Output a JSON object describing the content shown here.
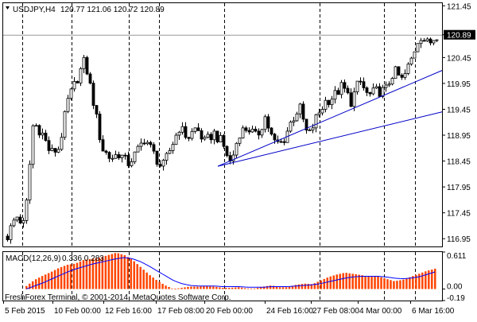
{
  "window": {
    "symbol_label": "USDJPY,H4",
    "ohlc_label": "120.77 121.06 120.72 120.89"
  },
  "copyright": "FreshForex Terminal, © 2001-2014, MetaQuotes Software Corp.",
  "colors": {
    "background": "#ffffff",
    "frame": "#000000",
    "candle": "#000000",
    "grid": "#000000",
    "trendline": "#0000c8",
    "macd_histogram": "#ff4500",
    "macd_signal": "#0000ff",
    "price_label_bg": "#000000",
    "price_label_text": "#ffffff"
  },
  "chart_data": [
    {
      "type": "candlestick",
      "title": "USDJPY,H4",
      "symbol": "USDJPY",
      "timeframe": "H4",
      "last_price": "120.89",
      "ylim": [
        116.8,
        121.5
      ],
      "y_ticks": [
        "121.45",
        "120.89",
        "120.45",
        "119.95",
        "119.45",
        "118.95",
        "118.45",
        "117.95",
        "117.45",
        "116.95"
      ],
      "x_ticks": [
        "5 Feb 2015",
        "10 Feb 00:00",
        "12 Feb 16:00",
        "17 Feb 08:00",
        "20 Feb 00:00",
        "24 Feb 16:00",
        "27 Feb 08:00",
        "4 Mar 00:00",
        "6 Mar 16:00"
      ],
      "grid": "dashed vertical lines at day separators",
      "price_path": [
        117.0,
        117.4,
        117.2,
        119.2,
        119.0,
        118.6,
        118.7,
        119.6,
        120.0,
        120.4,
        119.6,
        118.7,
        118.5,
        118.6,
        118.4,
        118.6,
        118.9,
        118.6,
        118.3,
        118.7,
        119.1,
        118.9,
        119.1,
        118.8,
        119.0,
        118.8,
        118.4,
        119.0,
        119.1,
        118.9,
        119.3,
        118.8,
        118.8,
        119.2,
        119.5,
        118.9,
        119.3,
        119.6,
        119.7,
        119.9,
        119.6,
        120.0,
        119.7,
        119.8,
        119.8,
        120.2,
        120.0,
        120.4,
        120.9,
        120.7,
        120.9
      ],
      "trendlines": [
        {
          "from": {
            "x": "20 Feb 00:00",
            "y": 118.35
          },
          "to": {
            "x": "right edge",
            "y": 120.2
          }
        },
        {
          "from": {
            "x": "20 Feb 00:00",
            "y": 118.35
          },
          "to": {
            "x": "right edge",
            "y": 119.4
          }
        }
      ]
    },
    {
      "type": "bar",
      "title": "MACD(12,26,9) 0.336 0.283",
      "indicator": "MACD(12,26,9)",
      "values_label": "0.336 0.283",
      "ylim": [
        -0.19,
        0.611
      ],
      "y_ticks": [
        "0.611",
        "0.00",
        "-0.19"
      ],
      "histogram": [
        0.05,
        0.15,
        0.22,
        0.28,
        0.35,
        0.4,
        0.42,
        0.48,
        0.5,
        0.52,
        0.56,
        0.6,
        0.56,
        0.48,
        0.36,
        0.24,
        0.14,
        0.06,
        0.0,
        0.02,
        0.04,
        0.04,
        0.05,
        0.04,
        0.02,
        0.02,
        0.03,
        0.01,
        0.01,
        0.04,
        0.06,
        0.03,
        0.03,
        0.07,
        0.09,
        0.08,
        0.14,
        0.2,
        0.24,
        0.27,
        0.25,
        0.23,
        0.2,
        0.21,
        0.17,
        0.13,
        0.15,
        0.2,
        0.25,
        0.3,
        0.336
      ],
      "signal": [
        0.0,
        0.05,
        0.1,
        0.16,
        0.22,
        0.28,
        0.33,
        0.37,
        0.41,
        0.44,
        0.47,
        0.5,
        0.52,
        0.5,
        0.45,
        0.38,
        0.3,
        0.22,
        0.14,
        0.09,
        0.06,
        0.05,
        0.05,
        0.05,
        0.04,
        0.04,
        0.04,
        0.03,
        0.03,
        0.03,
        0.04,
        0.04,
        0.04,
        0.05,
        0.06,
        0.07,
        0.09,
        0.12,
        0.15,
        0.18,
        0.2,
        0.21,
        0.21,
        0.21,
        0.2,
        0.18,
        0.17,
        0.18,
        0.2,
        0.24,
        0.283
      ]
    }
  ]
}
